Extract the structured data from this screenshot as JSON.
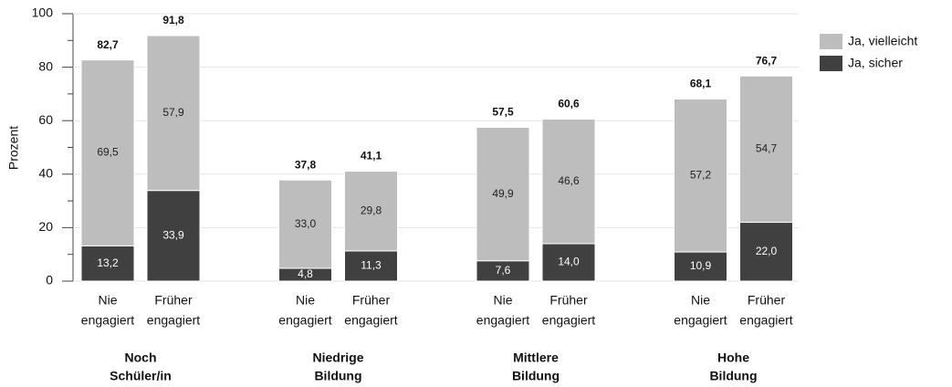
{
  "chart_data": {
    "type": "stacked_bar",
    "y_label": "Prozent",
    "categories": [
      [
        "Nie",
        "engagiert"
      ],
      [
        "Früher",
        "engagiert"
      ],
      [
        "Nie",
        "engagiert"
      ],
      [
        "Früher",
        "engagiert"
      ],
      [
        "Nie",
        "engagiert"
      ],
      [
        "Früher",
        "engagiert"
      ],
      [
        "Nie",
        "engagiert"
      ],
      [
        "Früher",
        "engagiert"
      ]
    ],
    "groups": [
      [
        "Noch",
        "Schüler/in"
      ],
      [
        "Niedrige",
        "Bildung"
      ],
      [
        "Mittlere",
        "Bildung"
      ],
      [
        "Hohe",
        "Bildung"
      ]
    ],
    "series": [
      {
        "name": "Ja, sicher",
        "color": "#404040",
        "label_color": "#ffffff",
        "values": [
          13.2,
          33.9,
          4.8,
          11.3,
          7.6,
          14.0,
          10.9,
          22.0
        ],
        "value_labels": [
          "13,2",
          "33,9",
          "4,8",
          "11,3",
          "7,6",
          "14,0",
          "10,9",
          "22,0"
        ]
      },
      {
        "name": "Ja, vielleicht",
        "color": "#bdbdbd",
        "label_color": "#222222",
        "values": [
          69.5,
          57.9,
          33.0,
          29.8,
          49.9,
          46.6,
          57.2,
          54.7
        ],
        "value_labels": [
          "69,5",
          "57,9",
          "33,0",
          "29,8",
          "49,9",
          "46,6",
          "57,2",
          "54,7"
        ]
      }
    ],
    "totals": [
      82.7,
      91.8,
      37.8,
      41.1,
      57.5,
      60.6,
      68.1,
      76.7
    ],
    "total_labels": [
      "82,7",
      "91,8",
      "37,8",
      "41,1",
      "57,5",
      "60,6",
      "68,1",
      "76,7"
    ],
    "ylim": [
      0,
      100
    ],
    "yticks": [
      0,
      20,
      40,
      60,
      80,
      100
    ],
    "yticks_minor": [
      10,
      30,
      50,
      70,
      90
    ],
    "grid": true,
    "legend": "top-right"
  }
}
